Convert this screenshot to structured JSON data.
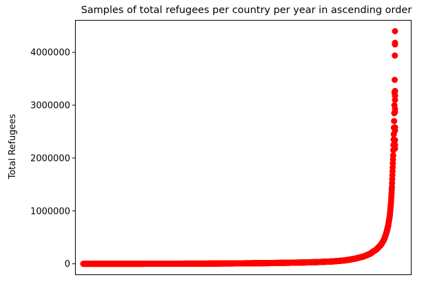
{
  "chart_data": {
    "type": "scatter",
    "title": "Samples of total refugees per country per year in ascending order",
    "xlabel": "",
    "ylabel": "Total Refugees",
    "x_ticks_visible": false,
    "grid": false,
    "legend": "none",
    "ylim": [
      -200000,
      4600000
    ],
    "yticks": [
      0,
      1000000,
      2000000,
      3000000,
      4000000
    ],
    "ytick_labels": [
      "0",
      "1000000",
      "2000000",
      "3000000",
      "4000000"
    ],
    "marker_color": "#ff0000",
    "sample_count": 2000,
    "series": [
      {
        "points": [
          [
            0.0,
            0
          ],
          [
            0.1,
            200
          ],
          [
            0.2,
            800
          ],
          [
            0.3,
            2000
          ],
          [
            0.4,
            4000
          ],
          [
            0.5,
            8000
          ],
          [
            0.6,
            14000
          ],
          [
            0.7,
            24000
          ],
          [
            0.75,
            32000
          ],
          [
            0.8,
            45000
          ],
          [
            0.84,
            65000
          ],
          [
            0.87,
            95000
          ],
          [
            0.9,
            140000
          ],
          [
            0.92,
            190000
          ],
          [
            0.94,
            270000
          ],
          [
            0.955,
            360000
          ],
          [
            0.965,
            460000
          ],
          [
            0.972,
            580000
          ],
          [
            0.978,
            720000
          ],
          [
            0.983,
            900000
          ],
          [
            0.987,
            1150000
          ],
          [
            0.99,
            1450000
          ],
          [
            0.992,
            1750000
          ],
          [
            0.994,
            2050000
          ],
          [
            0.996,
            2450000
          ],
          [
            0.997,
            2700000
          ],
          [
            0.998,
            3000000
          ],
          [
            0.999,
            3480000
          ],
          [
            1.0,
            4400000
          ]
        ],
        "extra_points": [
          4180000,
          4150000,
          3270000,
          3180000,
          3100000,
          2930000,
          2870000,
          2580000,
          2520000,
          2340000,
          2250000,
          2180000
        ]
      }
    ]
  }
}
